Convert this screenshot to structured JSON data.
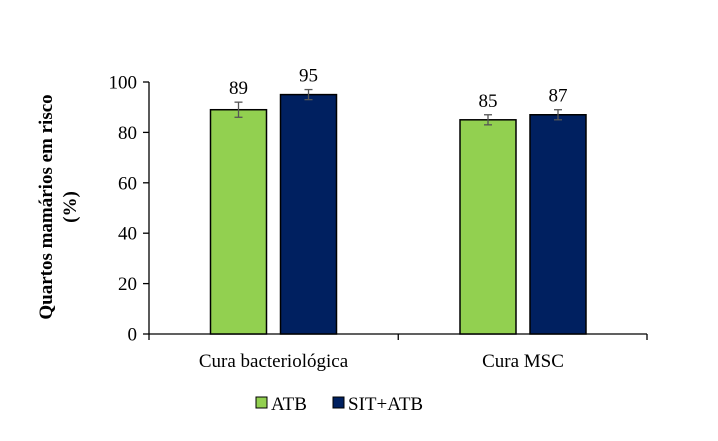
{
  "chart_data": {
    "type": "bar",
    "categories": [
      "Cura bacteriológica",
      "Cura MSC"
    ],
    "series": [
      {
        "name": "ATB",
        "values": [
          89,
          85
        ],
        "error": [
          3,
          2
        ],
        "color": "#92d050"
      },
      {
        "name": "SIT+ATB",
        "values": [
          95,
          87
        ],
        "error": [
          2,
          2
        ],
        "color": "#002060"
      }
    ],
    "ylabel_lines": [
      "Quartos mamários em risco",
      "(%)"
    ],
    "ylim": [
      0,
      100
    ],
    "yticks": [
      0,
      20,
      40,
      60,
      80,
      100
    ],
    "grid": false,
    "legend_position": "bottom"
  }
}
